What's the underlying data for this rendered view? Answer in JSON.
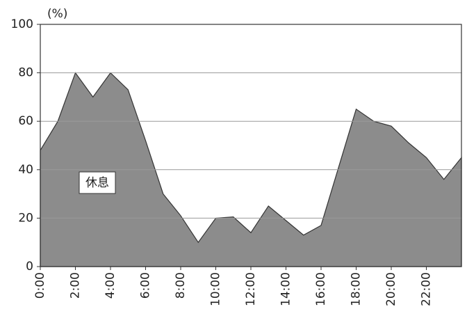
{
  "chart_data": {
    "type": "area",
    "y_unit": "(%)",
    "annotation": "休息",
    "x": [
      0,
      1,
      2,
      3,
      4,
      5,
      6,
      7,
      8,
      9,
      10,
      11,
      12,
      13,
      14,
      15,
      16,
      17,
      18,
      19,
      20,
      21,
      22,
      23,
      24
    ],
    "values": [
      48,
      60,
      80,
      70,
      80,
      73,
      52,
      30,
      21,
      10,
      20,
      20.5,
      14,
      25,
      19,
      13,
      17,
      41,
      65,
      60,
      58,
      51,
      45,
      36,
      45
    ],
    "color": "#8c8c8c",
    "xlim": [
      0,
      24
    ],
    "xticks": [
      {
        "value": 0,
        "label": "0:00"
      },
      {
        "value": 2,
        "label": "2:00"
      },
      {
        "value": 4,
        "label": "4:00"
      },
      {
        "value": 6,
        "label": "6:00"
      },
      {
        "value": 8,
        "label": "8:00"
      },
      {
        "value": 10,
        "label": "10:00"
      },
      {
        "value": 12,
        "label": "12:00"
      },
      {
        "value": 14,
        "label": "14:00"
      },
      {
        "value": 16,
        "label": "16:00"
      },
      {
        "value": 18,
        "label": "18:00"
      },
      {
        "value": 20,
        "label": "20:00"
      },
      {
        "value": 22,
        "label": "22:00"
      }
    ],
    "ylim": [
      0,
      100
    ],
    "yticks": [
      0,
      20,
      40,
      60,
      80,
      100
    ],
    "grid": true
  }
}
